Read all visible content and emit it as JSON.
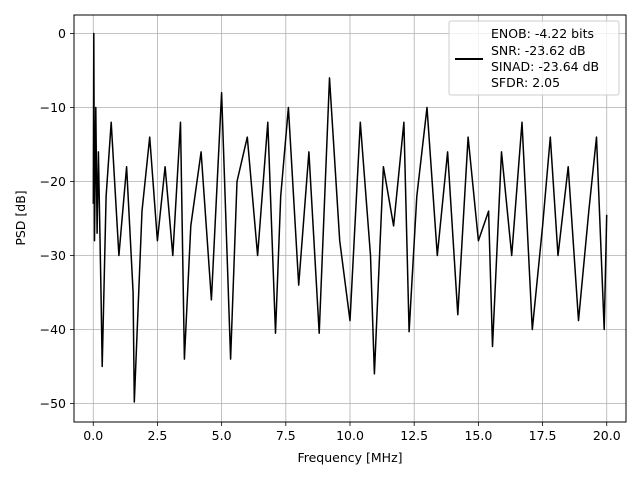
{
  "chart_data": {
    "type": "line",
    "xlabel": "Frequency [MHz]",
    "ylabel": "PSD [dB]",
    "xlim": [
      -0.75,
      20.75
    ],
    "ylim": [
      -52.5,
      2.5
    ],
    "xticks": [
      0.0,
      2.5,
      5.0,
      7.5,
      10.0,
      12.5,
      15.0,
      17.5,
      20.0
    ],
    "xtick_labels": [
      "0.0",
      "2.5",
      "5.0",
      "7.5",
      "10.0",
      "12.5",
      "15.0",
      "17.5",
      "20.0"
    ],
    "yticks": [
      0,
      -10,
      -20,
      -30,
      -40,
      -50
    ],
    "ytick_labels": [
      "0",
      "−10",
      "−20",
      "−30",
      "−40",
      "−50"
    ],
    "grid": true,
    "legend_placement": "upper right",
    "line_color": "#000000",
    "legend": [
      "ENOB: -4.22 bits",
      "SNR: -23.62 dB",
      "SINAD: -23.64 dB",
      "SFDR: 2.05"
    ],
    "series": [
      {
        "description": "noisy power spectral density from 0 to 20 MHz, peak 0 dB at DC, noise band roughly -5 to -28 dB with deep dips",
        "x": [
          0.0,
          0.02,
          0.05,
          0.1,
          0.15,
          0.2,
          0.3,
          0.35,
          0.5,
          0.7,
          1.0,
          1.3,
          1.55,
          1.6,
          1.9,
          2.2,
          2.5,
          2.8,
          3.1,
          3.4,
          3.55,
          3.8,
          4.2,
          4.6,
          5.0,
          5.35,
          5.6,
          6.0,
          6.4,
          6.8,
          7.1,
          7.3,
          7.6,
          8.0,
          8.4,
          8.8,
          9.2,
          9.6,
          10.0,
          10.4,
          10.8,
          10.95,
          11.3,
          11.7,
          12.1,
          12.3,
          12.6,
          13.0,
          13.4,
          13.8,
          14.2,
          14.6,
          15.0,
          15.4,
          15.55,
          15.9,
          16.3,
          16.7,
          17.1,
          17.5,
          17.8,
          18.1,
          18.5,
          18.9,
          19.3,
          19.6,
          19.9,
          20.0
        ],
        "y": [
          -23,
          0,
          -28,
          -10,
          -27,
          -16,
          -35,
          -45,
          -22,
          -12,
          -30,
          -18,
          -35,
          -49.8,
          -24,
          -14,
          -28,
          -18,
          -30,
          -12,
          -44,
          -26,
          -16,
          -36,
          -8,
          -44,
          -20,
          -14,
          -30,
          -12,
          -40.5,
          -22,
          -10,
          -34,
          -16,
          -40.5,
          -6,
          -28,
          -38.8,
          -12,
          -30,
          -46,
          -18,
          -26,
          -12,
          -40.3,
          -22,
          -10,
          -30,
          -16,
          -38,
          -14,
          -28,
          -24,
          -42.3,
          -16,
          -30,
          -12,
          -40,
          -26,
          -14,
          -30,
          -18,
          -38.8,
          -24,
          -14,
          -40,
          -24.5
        ]
      }
    ]
  }
}
